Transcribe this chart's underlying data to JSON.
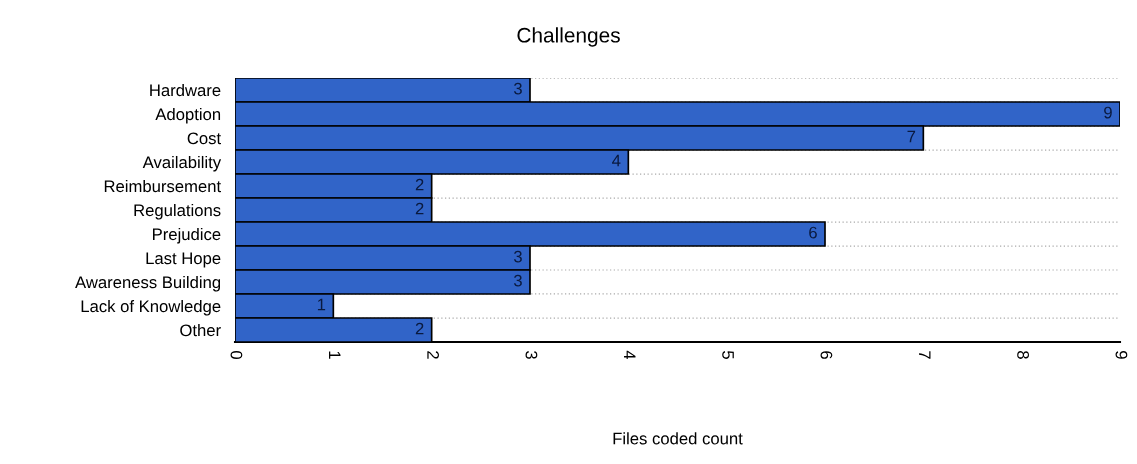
{
  "chart_data": {
    "type": "bar",
    "orientation": "horizontal",
    "title": "Challenges",
    "xlabel": "Files coded count",
    "categories": [
      "Hardware",
      "Adoption",
      "Cost",
      "Availability",
      "Reimbursement",
      "Regulations",
      "Prejudice",
      "Last Hope",
      "Awareness Building",
      "Lack of Knowledge",
      "Other"
    ],
    "values": [
      3,
      9,
      7,
      4,
      2,
      2,
      6,
      3,
      3,
      1,
      2
    ],
    "color": "#3164c8",
    "xlim": [
      0,
      9
    ],
    "xticks": [
      0,
      1,
      2,
      3,
      4,
      5,
      6,
      7,
      8,
      9
    ],
    "grid": "y",
    "data_labels": true,
    "legend": false
  }
}
